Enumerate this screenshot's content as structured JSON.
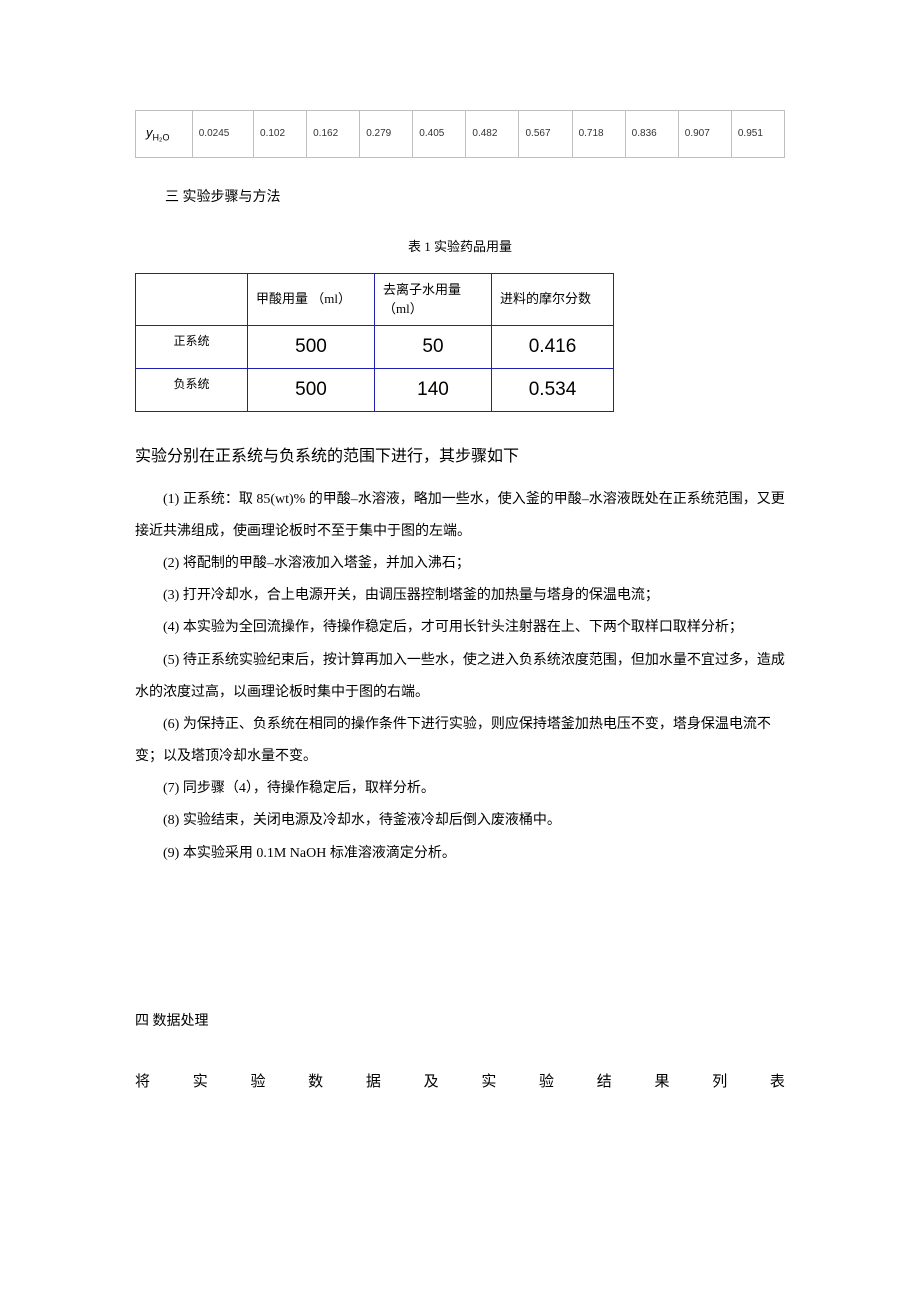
{
  "table1": {
    "row_label_html": "y<span class=\"sub\">H₂O</span>",
    "row_label": "yH2O",
    "values": [
      "0.0245",
      "0.102",
      "0.162",
      "0.279",
      "0.405",
      "0.482",
      "0.567",
      "0.718",
      "0.836",
      "0.907",
      "0.951"
    ]
  },
  "section3_title": "三  实验步骤与方法",
  "table2_caption": "表  1    实验药品用量",
  "table2": {
    "headers": [
      "",
      "甲酸用量 （ml）",
      "去离子水用量（ml）",
      "进料的摩尔分数"
    ],
    "rows": [
      {
        "label": "正系统",
        "v1": "500",
        "v2": "50",
        "v3": "0.416"
      },
      {
        "label": "负系统",
        "v1": "500",
        "v2": "140",
        "v3": "0.534"
      }
    ]
  },
  "lead": "实验分别在正系统与负系统的范围下进行，其步骤如下",
  "steps": [
    "(1)  正系统：取     85(wt)% 的甲酸–水溶液，略加一些水，使入釜的甲酸–水溶液既处在正系统范围，又更接近共沸组成，使画理论板时不至于集中于图的左端。",
    "(2)  将配制的甲酸–水溶液加入塔釜，并加入沸石；",
    "(3)  打开冷却水，合上电源开关，由调压器控制塔釜的加热量与塔身的保温电流；",
    "(4)  本实验为全回流操作，待操作稳定后，才可用长针头注射器在上、下两个取样口取样分析；",
    "(5)  待正系统实验纪束后，按计算再加入一些水，使之进入负系统浓度范围，但加水量不宜过多，造成水的浓度过高，以画理论板时集中于图的右端。",
    "(6)  为保持正、负系统在相同的操作条件下进行实验，则应保持塔釜加热电压不变，塔身保温电流不变；以及塔顶冷却水量不变。",
    "(7)  同步骤（4），待操作稳定后，取样分析。",
    "(8)  实验结束，关闭电源及冷却水，待釜液冷却后倒入废液桶中。",
    "(9)  本实验采用    0.1M NaOH 标准溶液滴定分析。"
  ],
  "section4_title": "四    数据处理",
  "justified_chars": [
    "将",
    "实",
    "验",
    "数",
    "据",
    "及",
    "实",
    "验",
    "结",
    "果",
    "列",
    "表"
  ]
}
